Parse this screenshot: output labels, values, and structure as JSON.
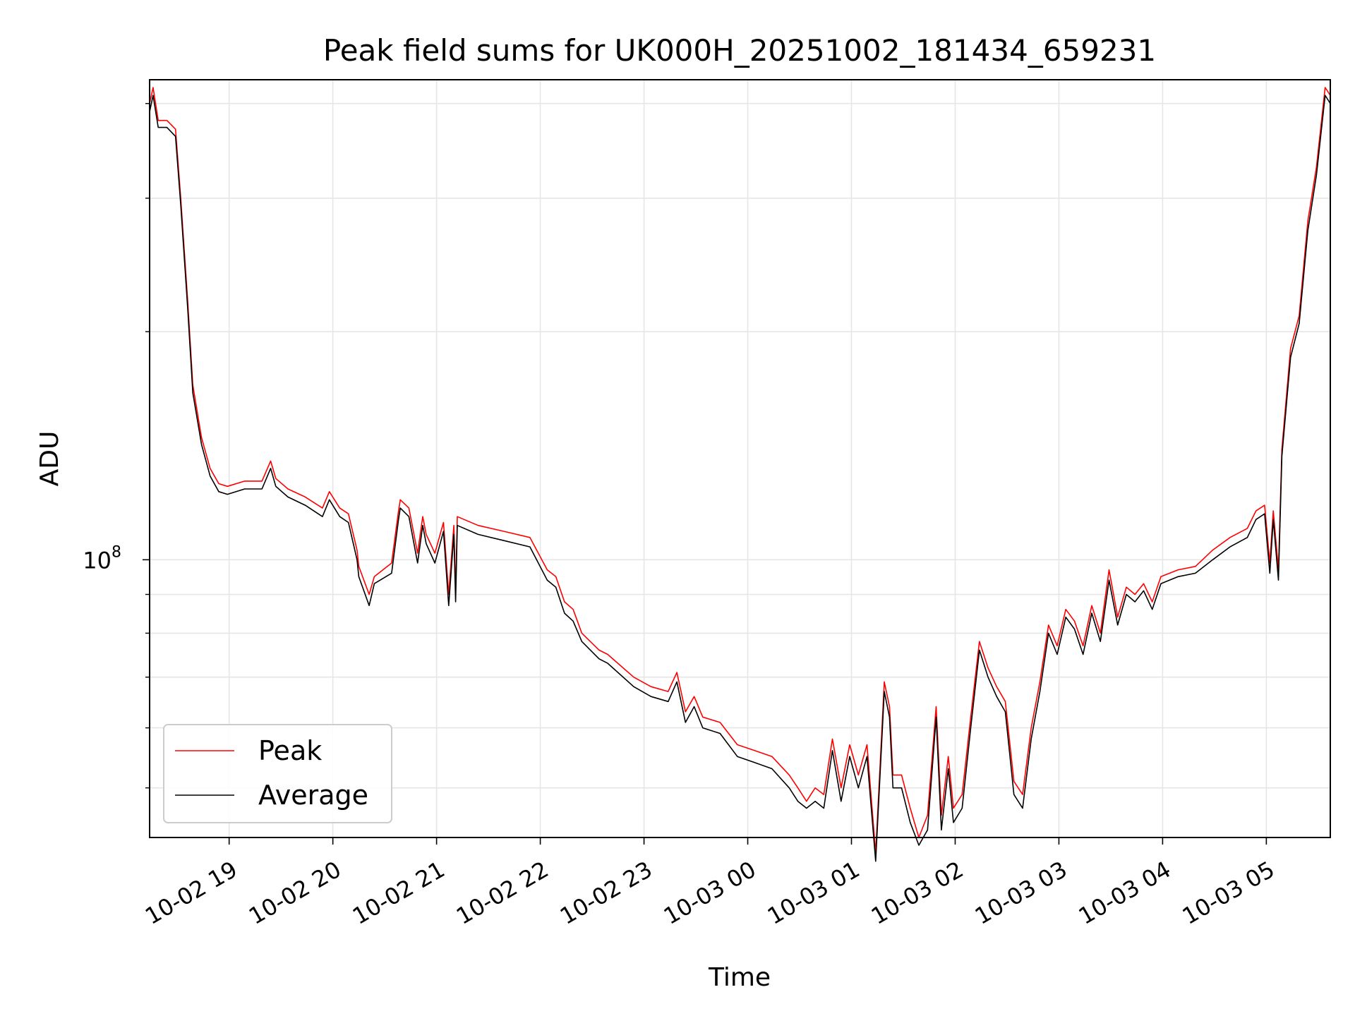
{
  "chart_data": {
    "type": "line",
    "title": "Peak field sums for UK000H_20251002_181434_659231",
    "xlabel": "Time",
    "ylabel": "ADU",
    "yscale": "log",
    "xlim": [
      "2025-10-02 18:14",
      "2025-10-03 05:37"
    ],
    "ylim": [
      43000000,
      430000000
    ],
    "grid": true,
    "legend_position": "lower-left",
    "x_ticks": [
      {
        "time": "2025-10-02 19:00",
        "label": "10-02 19"
      },
      {
        "time": "2025-10-02 20:00",
        "label": "10-02 20"
      },
      {
        "time": "2025-10-02 21:00",
        "label": "10-02 21"
      },
      {
        "time": "2025-10-02 22:00",
        "label": "10-02 22"
      },
      {
        "time": "2025-10-02 23:00",
        "label": "10-02 23"
      },
      {
        "time": "2025-10-03 00:00",
        "label": "10-03 00"
      },
      {
        "time": "2025-10-03 01:00",
        "label": "10-03 01"
      },
      {
        "time": "2025-10-03 02:00",
        "label": "10-03 02"
      },
      {
        "time": "2025-10-03 03:00",
        "label": "10-03 03"
      },
      {
        "time": "2025-10-03 04:00",
        "label": "10-03 04"
      },
      {
        "time": "2025-10-03 05:00",
        "label": "10-03 05"
      }
    ],
    "y_major_ticks": [
      {
        "value": 100000000,
        "base": "10",
        "exp": "8"
      }
    ],
    "y_minor_ticks": [
      50000000,
      60000000,
      70000000,
      80000000,
      90000000,
      200000000,
      300000000,
      400000000
    ],
    "series": [
      {
        "name": "Peak",
        "color": "#ff0000",
        "x": [
          "2025-10-02 18:14",
          "2025-10-02 18:16",
          "2025-10-02 18:19",
          "2025-10-02 18:24",
          "2025-10-02 18:29",
          "2025-10-02 18:32",
          "2025-10-02 18:36",
          "2025-10-02 18:39",
          "2025-10-02 18:44",
          "2025-10-02 18:49",
          "2025-10-02 18:54",
          "2025-10-02 18:59",
          "2025-10-02 19:09",
          "2025-10-02 19:19",
          "2025-10-02 19:24",
          "2025-10-02 19:27",
          "2025-10-02 19:34",
          "2025-10-02 19:44",
          "2025-10-02 19:54",
          "2025-10-02 19:58",
          "2025-10-02 20:04",
          "2025-10-02 20:09",
          "2025-10-02 20:14",
          "2025-10-02 20:15",
          "2025-10-02 20:21",
          "2025-10-02 20:24",
          "2025-10-02 20:34",
          "2025-10-02 20:38",
          "2025-10-02 20:39",
          "2025-10-02 20:44",
          "2025-10-02 20:49",
          "2025-10-02 20:52",
          "2025-10-02 20:54",
          "2025-10-02 20:59",
          "2025-10-02 21:04",
          "2025-10-02 21:07",
          "2025-10-02 21:10",
          "2025-10-02 21:11",
          "2025-10-02 21:12",
          "2025-10-02 21:24",
          "2025-10-02 21:39",
          "2025-10-02 21:54",
          "2025-10-02 22:04",
          "2025-10-02 22:09",
          "2025-10-02 22:14",
          "2025-10-02 22:19",
          "2025-10-02 22:24",
          "2025-10-02 22:34",
          "2025-10-02 22:39",
          "2025-10-02 22:54",
          "2025-10-02 23:04",
          "2025-10-02 23:14",
          "2025-10-02 23:19",
          "2025-10-02 23:24",
          "2025-10-02 23:29",
          "2025-10-02 23:34",
          "2025-10-02 23:44",
          "2025-10-02 23:54",
          "2025-10-03 00:04",
          "2025-10-03 00:14",
          "2025-10-03 00:24",
          "2025-10-03 00:29",
          "2025-10-03 00:34",
          "2025-10-03 00:39",
          "2025-10-03 00:44",
          "2025-10-03 00:49",
          "2025-10-03 00:54",
          "2025-10-03 00:59",
          "2025-10-03 01:04",
          "2025-10-03 01:09",
          "2025-10-03 01:14",
          "2025-10-03 01:19",
          "2025-10-03 01:22",
          "2025-10-03 01:24",
          "2025-10-03 01:29",
          "2025-10-03 01:34",
          "2025-10-03 01:39",
          "2025-10-03 01:44",
          "2025-10-03 01:49",
          "2025-10-03 01:52",
          "2025-10-03 01:56",
          "2025-10-03 01:59",
          "2025-10-03 02:04",
          "2025-10-03 02:09",
          "2025-10-03 02:14",
          "2025-10-03 02:19",
          "2025-10-03 02:24",
          "2025-10-03 02:29",
          "2025-10-03 02:34",
          "2025-10-03 02:39",
          "2025-10-03 02:44",
          "2025-10-03 02:49",
          "2025-10-03 02:54",
          "2025-10-03 02:59",
          "2025-10-03 03:04",
          "2025-10-03 03:09",
          "2025-10-03 03:14",
          "2025-10-03 03:19",
          "2025-10-03 03:24",
          "2025-10-03 03:29",
          "2025-10-03 03:34",
          "2025-10-03 03:39",
          "2025-10-03 03:44",
          "2025-10-03 03:49",
          "2025-10-03 03:54",
          "2025-10-03 03:59",
          "2025-10-03 04:09",
          "2025-10-03 04:19",
          "2025-10-03 04:29",
          "2025-10-03 04:39",
          "2025-10-03 04:49",
          "2025-10-03 04:54",
          "2025-10-03 04:59",
          "2025-10-03 05:02",
          "2025-10-03 05:04",
          "2025-10-03 05:07",
          "2025-10-03 05:09",
          "2025-10-03 05:14",
          "2025-10-03 05:19",
          "2025-10-03 05:24",
          "2025-10-03 05:29",
          "2025-10-03 05:34",
          "2025-10-03 05:37"
        ],
        "values": [
          400000000,
          420000000,
          380000000,
          380000000,
          370000000,
          300000000,
          220000000,
          170000000,
          145000000,
          132000000,
          126000000,
          125000000,
          127000000,
          127000000,
          135000000,
          128000000,
          124000000,
          121000000,
          117000000,
          123000000,
          117000000,
          115000000,
          103000000,
          98000000,
          90000000,
          95000000,
          99000000,
          116000000,
          120000000,
          117000000,
          102000000,
          114000000,
          108000000,
          102000000,
          112000000,
          90000000,
          111000000,
          91000000,
          114000000,
          111000000,
          109000000,
          107000000,
          97000000,
          95000000,
          88000000,
          86000000,
          80000000,
          76000000,
          75000000,
          70000000,
          68000000,
          67000000,
          71000000,
          63000000,
          66000000,
          62000000,
          61000000,
          57000000,
          56000000,
          55000000,
          52000000,
          50000000,
          48000000,
          50000000,
          49000000,
          58000000,
          50000000,
          57000000,
          52000000,
          57000000,
          41000000,
          69000000,
          64000000,
          52000000,
          52000000,
          47000000,
          43000000,
          46000000,
          64000000,
          46000000,
          55000000,
          47000000,
          49000000,
          62000000,
          78000000,
          72000000,
          68000000,
          65000000,
          51000000,
          49000000,
          60000000,
          69000000,
          82000000,
          77000000,
          86000000,
          83000000,
          77000000,
          87000000,
          80000000,
          97000000,
          84000000,
          92000000,
          90000000,
          93000000,
          88000000,
          95000000,
          97000000,
          98000000,
          103000000,
          107000000,
          110000000,
          116000000,
          118000000,
          99000000,
          116000000,
          97000000,
          140000000,
          190000000,
          210000000,
          280000000,
          330000000,
          420000000,
          410000000
        ]
      },
      {
        "name": "Average",
        "color": "#000000",
        "x": [
          "2025-10-02 18:14",
          "2025-10-02 18:16",
          "2025-10-02 18:19",
          "2025-10-02 18:24",
          "2025-10-02 18:29",
          "2025-10-02 18:32",
          "2025-10-02 18:36",
          "2025-10-02 18:39",
          "2025-10-02 18:44",
          "2025-10-02 18:49",
          "2025-10-02 18:54",
          "2025-10-02 18:59",
          "2025-10-02 19:09",
          "2025-10-02 19:19",
          "2025-10-02 19:24",
          "2025-10-02 19:27",
          "2025-10-02 19:34",
          "2025-10-02 19:44",
          "2025-10-02 19:54",
          "2025-10-02 19:58",
          "2025-10-02 20:04",
          "2025-10-02 20:09",
          "2025-10-02 20:14",
          "2025-10-02 20:15",
          "2025-10-02 20:21",
          "2025-10-02 20:24",
          "2025-10-02 20:34",
          "2025-10-02 20:38",
          "2025-10-02 20:39",
          "2025-10-02 20:44",
          "2025-10-02 20:49",
          "2025-10-02 20:52",
          "2025-10-02 20:54",
          "2025-10-02 20:59",
          "2025-10-02 21:04",
          "2025-10-02 21:07",
          "2025-10-02 21:10",
          "2025-10-02 21:11",
          "2025-10-02 21:12",
          "2025-10-02 21:24",
          "2025-10-02 21:39",
          "2025-10-02 21:54",
          "2025-10-02 22:04",
          "2025-10-02 22:09",
          "2025-10-02 22:14",
          "2025-10-02 22:19",
          "2025-10-02 22:24",
          "2025-10-02 22:34",
          "2025-10-02 22:39",
          "2025-10-02 22:54",
          "2025-10-02 23:04",
          "2025-10-02 23:14",
          "2025-10-02 23:19",
          "2025-10-02 23:24",
          "2025-10-02 23:29",
          "2025-10-02 23:34",
          "2025-10-02 23:44",
          "2025-10-02 23:54",
          "2025-10-03 00:04",
          "2025-10-03 00:14",
          "2025-10-03 00:24",
          "2025-10-03 00:29",
          "2025-10-03 00:34",
          "2025-10-03 00:39",
          "2025-10-03 00:44",
          "2025-10-03 00:49",
          "2025-10-03 00:54",
          "2025-10-03 00:59",
          "2025-10-03 01:04",
          "2025-10-03 01:09",
          "2025-10-03 01:14",
          "2025-10-03 01:19",
          "2025-10-03 01:22",
          "2025-10-03 01:24",
          "2025-10-03 01:29",
          "2025-10-03 01:34",
          "2025-10-03 01:39",
          "2025-10-03 01:44",
          "2025-10-03 01:49",
          "2025-10-03 01:52",
          "2025-10-03 01:56",
          "2025-10-03 01:59",
          "2025-10-03 02:04",
          "2025-10-03 02:09",
          "2025-10-03 02:14",
          "2025-10-03 02:19",
          "2025-10-03 02:24",
          "2025-10-03 02:29",
          "2025-10-03 02:34",
          "2025-10-03 02:39",
          "2025-10-03 02:44",
          "2025-10-03 02:49",
          "2025-10-03 02:54",
          "2025-10-03 02:59",
          "2025-10-03 03:04",
          "2025-10-03 03:09",
          "2025-10-03 03:14",
          "2025-10-03 03:19",
          "2025-10-03 03:24",
          "2025-10-03 03:29",
          "2025-10-03 03:34",
          "2025-10-03 03:39",
          "2025-10-03 03:44",
          "2025-10-03 03:49",
          "2025-10-03 03:54",
          "2025-10-03 03:59",
          "2025-10-03 04:09",
          "2025-10-03 04:19",
          "2025-10-03 04:29",
          "2025-10-03 04:39",
          "2025-10-03 04:49",
          "2025-10-03 04:54",
          "2025-10-03 04:59",
          "2025-10-03 05:02",
          "2025-10-03 05:04",
          "2025-10-03 05:07",
          "2025-10-03 05:09",
          "2025-10-03 05:14",
          "2025-10-03 05:19",
          "2025-10-03 05:24",
          "2025-10-03 05:29",
          "2025-10-03 05:34",
          "2025-10-03 05:37"
        ],
        "values": [
          390000000,
          410000000,
          372000000,
          372000000,
          362000000,
          294000000,
          215000000,
          166000000,
          142000000,
          129000000,
          123000000,
          122000000,
          124000000,
          124000000,
          132000000,
          125000000,
          121000000,
          118000000,
          114000000,
          120000000,
          114000000,
          112000000,
          100000000,
          95000000,
          87000000,
          93000000,
          96000000,
          113000000,
          117000000,
          114000000,
          99000000,
          111000000,
          105000000,
          99000000,
          109000000,
          87000000,
          108000000,
          88000000,
          111000000,
          108000000,
          106000000,
          104000000,
          94000000,
          92000000,
          85000000,
          83000000,
          78000000,
          74000000,
          73000000,
          68000000,
          66000000,
          65000000,
          69000000,
          61000000,
          64000000,
          60000000,
          59000000,
          55000000,
          54000000,
          53000000,
          50000000,
          48000000,
          47000000,
          48000000,
          47000000,
          56000000,
          48000000,
          55000000,
          50000000,
          55000000,
          40000000,
          67000000,
          62000000,
          50000000,
          50000000,
          45000000,
          42000000,
          44000000,
          62000000,
          44000000,
          53000000,
          45000000,
          47000000,
          60000000,
          76000000,
          70000000,
          66000000,
          63000000,
          49000000,
          47000000,
          58000000,
          67000000,
          80000000,
          75000000,
          84000000,
          81000000,
          75000000,
          85000000,
          78000000,
          94000000,
          82000000,
          90000000,
          88000000,
          91000000,
          86000000,
          93000000,
          95000000,
          96000000,
          100000000,
          104000000,
          107000000,
          113000000,
          115000000,
          96000000,
          113000000,
          94000000,
          137000000,
          185000000,
          205000000,
          272000000,
          322000000,
          410000000,
          400000000
        ]
      }
    ]
  }
}
